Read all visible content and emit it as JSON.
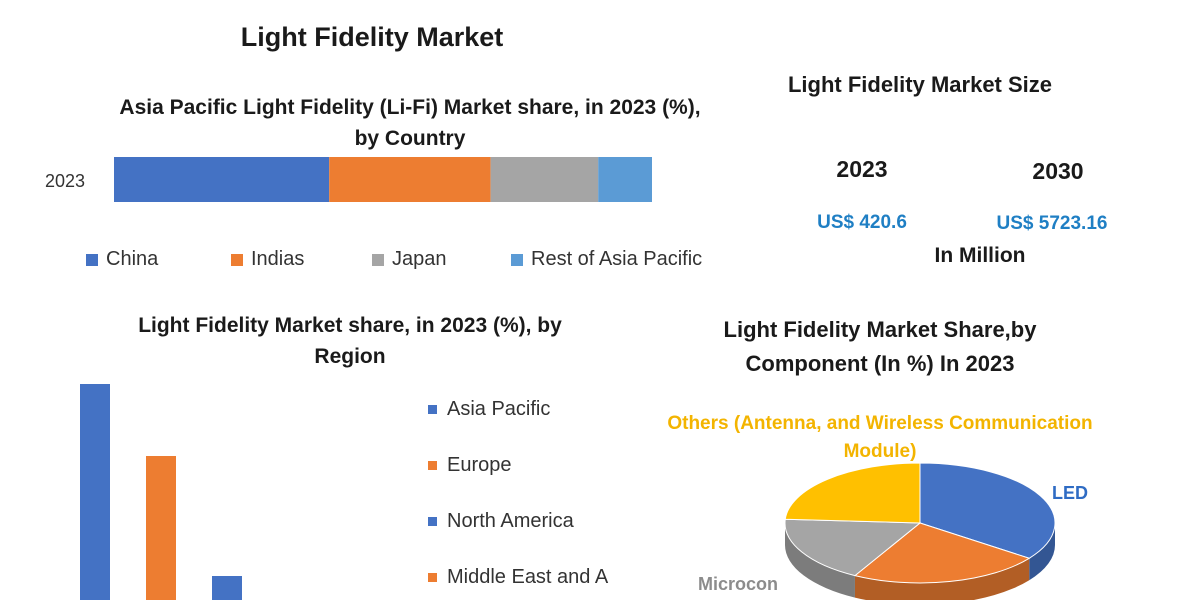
{
  "header": {
    "title": "Light Fidelity Market"
  },
  "chart_data": [
    {
      "type": "bar",
      "orientation": "horizontal",
      "stacked": true,
      "title": "Asia Pacific Light Fidelity (Li-Fi) Market share, in 2023 (%), by Country",
      "categories": [
        "2023"
      ],
      "series": [
        {
          "name": "China",
          "values": [
            40
          ],
          "color": "#4472c4"
        },
        {
          "name": "Indias",
          "values": [
            30
          ],
          "color": "#ed7d31"
        },
        {
          "name": "Japan",
          "values": [
            20
          ],
          "color": "#a5a5a5"
        },
        {
          "name": "Rest of Asia Pacific",
          "values": [
            10
          ],
          "color": "#5b9bd5"
        }
      ],
      "xlim": [
        0,
        100
      ],
      "legend": "bottom",
      "grid": false
    },
    {
      "type": "bar",
      "title": "Light Fidelity Market share, in 2023 (%), by Region",
      "categories": [
        "Asia Pacific",
        "Europe",
        "North America",
        "Middle East and A"
      ],
      "values": [
        36,
        24,
        4,
        0
      ],
      "colors": [
        "#4472c4",
        "#ed7d31",
        "#4472c4",
        "#ed7d31"
      ],
      "ylim": [
        0,
        40
      ],
      "legend": "right",
      "grid": false
    },
    {
      "type": "pie",
      "title": "Light Fidelity Market Share,by Component (In %) In 2023",
      "labels": [
        "LED",
        "Others (Antenna, and Wireless Communication Module)",
        "Microcon"
      ],
      "series": [
        {
          "name": "LED",
          "value": 35,
          "color": "#4472c4"
        },
        {
          "name": "",
          "value": 23,
          "color": "#ed7d31"
        },
        {
          "name": "Microcon",
          "value": 18,
          "color": "#a5a5a5"
        },
        {
          "name": "Others (Antenna, and Wireless Communication Module)",
          "value": 24,
          "color": "#ffc000"
        }
      ]
    }
  ],
  "market_size": {
    "title": "Light Fidelity Market Size",
    "year_a": "2023",
    "year_b": "2030",
    "value_a": "US$ 420.6",
    "value_b": "US$ 5723.16",
    "unit": "In Million"
  }
}
